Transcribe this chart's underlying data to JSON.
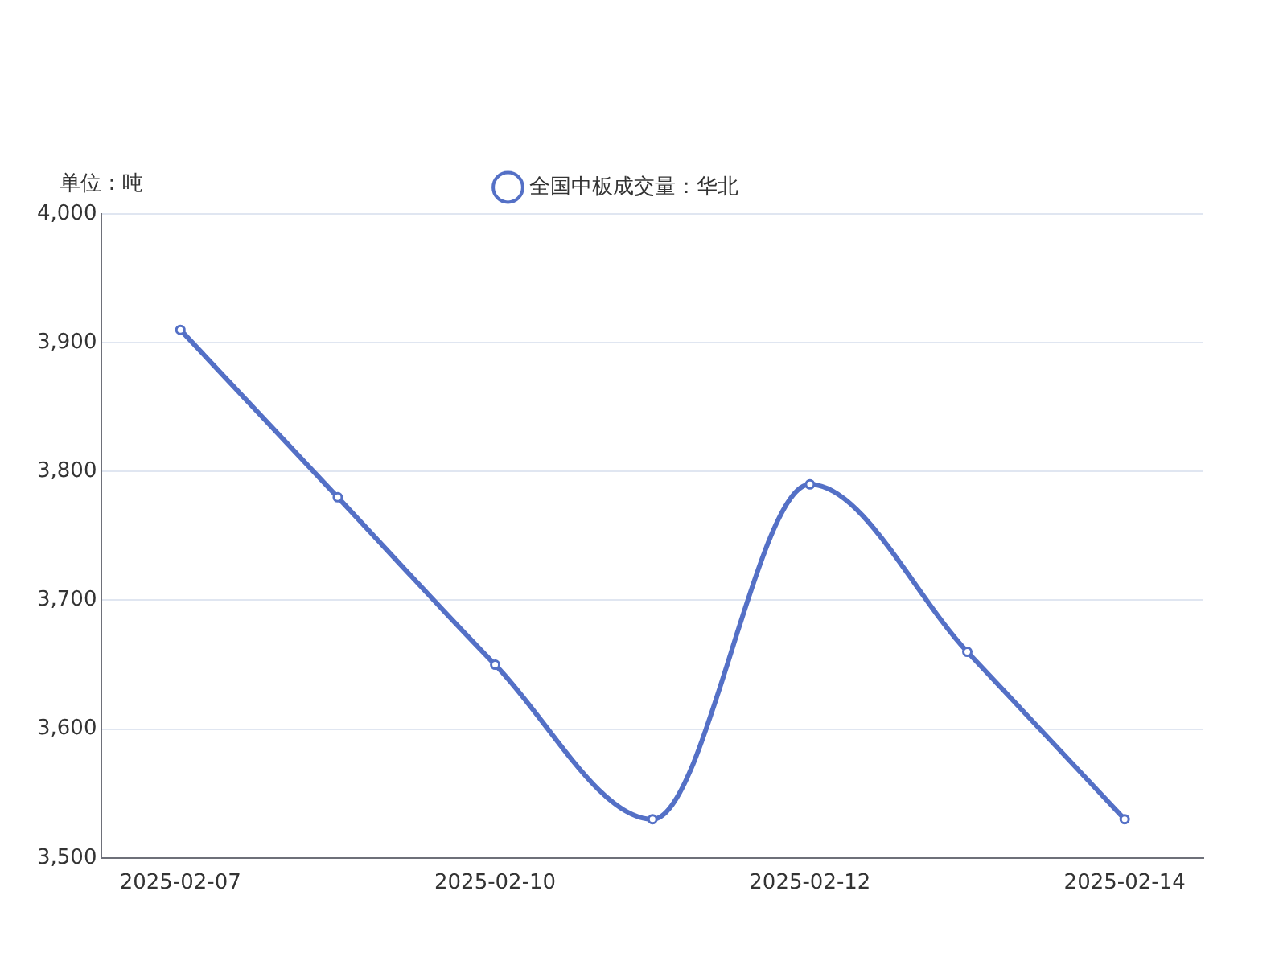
{
  "chart_data": {
    "type": "line",
    "ylabel": "单位：吨",
    "categories": [
      "2025-02-07",
      null,
      "2025-02-10",
      null,
      "2025-02-12",
      null,
      "2025-02-14"
    ],
    "series": [
      {
        "name": "全国中板成交量：华北",
        "color": "#5470c6",
        "values": [
          3910,
          3780,
          3650,
          3530,
          3790,
          3660,
          3530
        ]
      }
    ],
    "ylim": [
      3500,
      4000
    ],
    "yticks": [
      {
        "value": 3500,
        "label": "3,500"
      },
      {
        "value": 3600,
        "label": "3,600"
      },
      {
        "value": 3700,
        "label": "3,700"
      },
      {
        "value": 3800,
        "label": "3,800"
      },
      {
        "value": 3900,
        "label": "3,900"
      },
      {
        "value": 4000,
        "label": "4,000"
      }
    ],
    "grid": "y",
    "legend": "top",
    "marker": "circle",
    "line_style": "solid"
  }
}
